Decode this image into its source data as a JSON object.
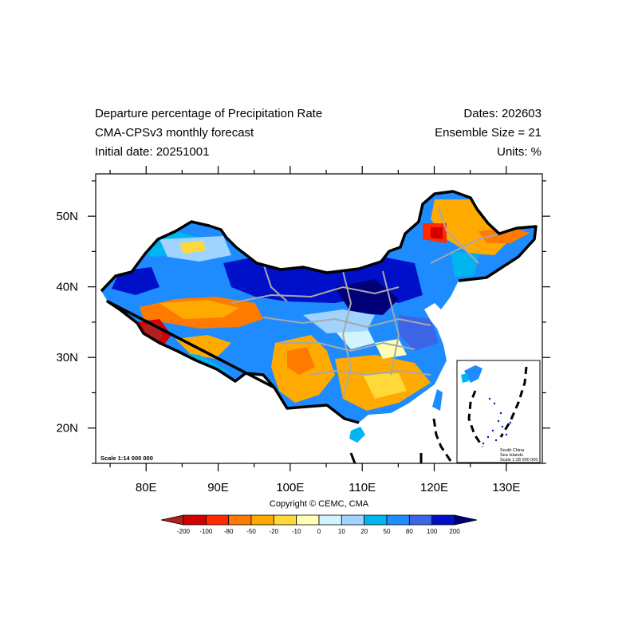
{
  "header": {
    "title": "Departure percentage of Precipitation Rate",
    "model": "CMA-CPSv3 monthly forecast",
    "initial_date": "Initial date: 20251001",
    "dates": "Dates: 202603",
    "ensemble": "Ensemble Size = 21",
    "units": "Units: %"
  },
  "axes": {
    "lon_ticks": [
      "80E",
      "90E",
      "100E",
      "110E",
      "120E",
      "130E"
    ],
    "lat_ticks": [
      "50N",
      "40N",
      "30N",
      "20N"
    ],
    "lon_range": [
      73,
      135
    ],
    "lat_range": [
      15,
      56
    ]
  },
  "scale_note": "Scale 1:14 000 000",
  "inset": {
    "title_line1": "South China",
    "title_line2": "Sea Islands",
    "scale": "Scale 1:28 000 000"
  },
  "copyright": "Copyright © CEMC, CMA",
  "colorbar": {
    "labels": [
      "-200",
      "-100",
      "-80",
      "-50",
      "-20",
      "-10",
      "0",
      "10",
      "20",
      "50",
      "80",
      "100",
      "200"
    ],
    "colors": [
      "#b02020",
      "#d40000",
      "#ff2a00",
      "#ff7a00",
      "#ffaa00",
      "#ffd83a",
      "#ffffb8",
      "#d2f4ff",
      "#a0d4ff",
      "#00b4f0",
      "#1e8cff",
      "#3c64e6",
      "#0010c8",
      "#000078"
    ]
  }
}
